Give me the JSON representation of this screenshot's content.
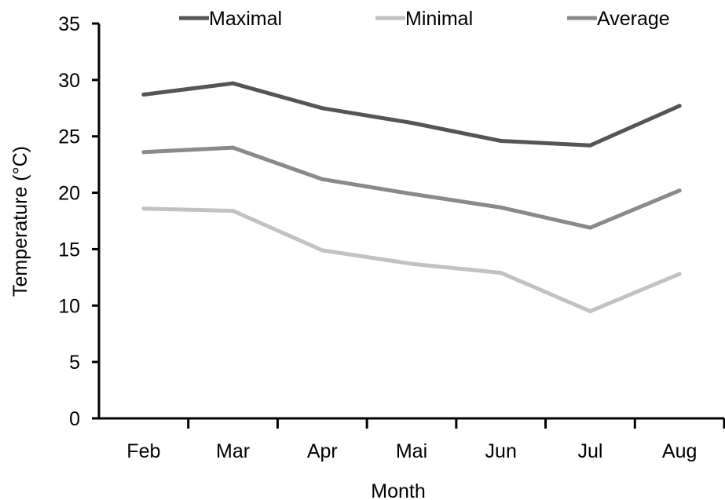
{
  "chart_data": {
    "type": "line",
    "title": "",
    "xlabel": "Month",
    "ylabel": "Temperature (°C)",
    "categories": [
      "Feb",
      "Mar",
      "Apr",
      "Mai",
      "Jun",
      "Jul",
      "Aug"
    ],
    "ylim": [
      0,
      35
    ],
    "yticks": [
      0,
      5,
      10,
      15,
      20,
      25,
      30,
      35
    ],
    "grid": false,
    "legend_position": "top",
    "series": [
      {
        "name": "Maximal",
        "color": "#555555",
        "values": [
          28.7,
          29.7,
          27.5,
          26.2,
          24.6,
          24.2,
          27.7
        ]
      },
      {
        "name": "Minimal",
        "color": "#c2c2c2",
        "values": [
          18.6,
          18.4,
          14.9,
          13.7,
          12.9,
          9.5,
          12.8
        ]
      },
      {
        "name": "Average",
        "color": "#8a8a8a",
        "values": [
          23.6,
          24.0,
          21.2,
          19.9,
          18.7,
          16.9,
          20.2
        ]
      }
    ]
  }
}
